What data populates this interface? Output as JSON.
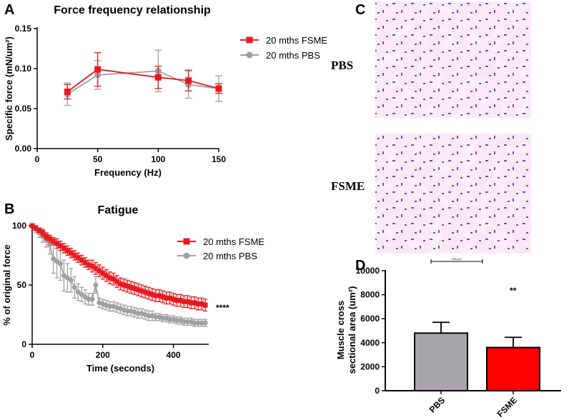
{
  "panels": {
    "A": "A",
    "B": "B",
    "C": "C",
    "D": "D"
  },
  "histology": {
    "pbs_label": "PBS",
    "fsme_label": "FSME",
    "scale_text": "200 μm",
    "colors": {
      "tissue": "#e58fd6",
      "background": "#fbe7f6",
      "nuclei": "#4a3aa3"
    }
  },
  "colors": {
    "fsme": "#e8191f",
    "pbs": "#a0a0a0",
    "pbs_bar": "#a7a5aa",
    "axis": "#000000"
  },
  "chart_data": [
    {
      "id": "A",
      "type": "line",
      "title": "Force frequency relationship",
      "xlabel": "Frequency (Hz)",
      "ylabel": "Specific force (mN/um²)",
      "xlim": [
        0,
        150
      ],
      "ylim": [
        0,
        0.15
      ],
      "xticks": [
        0,
        50,
        100,
        150
      ],
      "yticks": [
        0,
        0.05,
        0.1,
        0.15
      ],
      "ytick_labels": [
        "0.00",
        "0.05",
        "0.10",
        "0.15"
      ],
      "x": [
        25,
        50,
        100,
        125,
        150
      ],
      "legend_position": "top-right",
      "series": [
        {
          "name": "20 mths FSME",
          "color": "#e8191f",
          "marker": "square",
          "values": [
            0.071,
            0.099,
            0.089,
            0.085,
            0.075
          ],
          "errors": [
            0.009,
            0.021,
            0.014,
            0.013,
            0.006
          ]
        },
        {
          "name": "20 mths PBS",
          "color": "#a0a0a0",
          "marker": "circle",
          "values": [
            0.068,
            0.092,
            0.097,
            0.08,
            0.075
          ],
          "errors": [
            0.014,
            0.018,
            0.026,
            0.017,
            0.016
          ]
        }
      ]
    },
    {
      "id": "B",
      "type": "line",
      "title": "Fatigue",
      "xlabel": "Time (seconds)",
      "ylabel": "% of original force",
      "xlim": [
        0,
        500
      ],
      "ylim": [
        0,
        100
      ],
      "xticks": [
        0,
        200,
        400
      ],
      "yticks": [
        0,
        50,
        100
      ],
      "significance": "****",
      "legend_position": "top-right",
      "series": [
        {
          "name": "20 mths FSME",
          "color": "#e8191f",
          "marker": "square",
          "x": [
            0,
            10,
            20,
            30,
            40,
            50,
            60,
            70,
            80,
            90,
            100,
            110,
            120,
            130,
            140,
            150,
            160,
            170,
            180,
            190,
            200,
            210,
            220,
            230,
            240,
            250,
            260,
            270,
            280,
            290,
            300,
            310,
            320,
            330,
            340,
            350,
            360,
            370,
            380,
            390,
            400,
            410,
            420,
            430,
            440,
            450,
            460,
            470,
            480,
            490
          ],
          "values": [
            100,
            98,
            96,
            94,
            91,
            89,
            87,
            85,
            83,
            81,
            79,
            77,
            75,
            73,
            71,
            69,
            67,
            66,
            64,
            62,
            60,
            58,
            56,
            55,
            53,
            51,
            50,
            49,
            48,
            47,
            46,
            45,
            44,
            43,
            42,
            41,
            41,
            40,
            39,
            39,
            38,
            37,
            37,
            36,
            36,
            35,
            35,
            34,
            34,
            33
          ],
          "errors": [
            1,
            2,
            2,
            3,
            3,
            3,
            3,
            4,
            4,
            4,
            4,
            4,
            4,
            4,
            4,
            4,
            4,
            5,
            5,
            5,
            5,
            5,
            5,
            5,
            5,
            5,
            5,
            5,
            5,
            5,
            5,
            5,
            5,
            5,
            5,
            5,
            5,
            5,
            5,
            5,
            5,
            5,
            5,
            5,
            5,
            5,
            5,
            5,
            5,
            5
          ]
        },
        {
          "name": "20 mths PBS",
          "color": "#a0a0a0",
          "marker": "circle",
          "x": [
            0,
            10,
            20,
            30,
            40,
            50,
            60,
            70,
            80,
            90,
            100,
            110,
            120,
            130,
            140,
            150,
            160,
            170,
            180,
            190,
            200,
            210,
            220,
            230,
            240,
            250,
            260,
            270,
            280,
            290,
            300,
            310,
            320,
            330,
            340,
            350,
            360,
            370,
            380,
            390,
            400,
            410,
            420,
            430,
            440,
            450,
            460,
            470,
            480,
            490
          ],
          "values": [
            100,
            97,
            94,
            91,
            88,
            84,
            72,
            70,
            68,
            58,
            56,
            54,
            48,
            44,
            42,
            40,
            38,
            38,
            50,
            35,
            34,
            33,
            32,
            32,
            31,
            30,
            29,
            28,
            28,
            27,
            26,
            26,
            25,
            24,
            24,
            23,
            23,
            22,
            22,
            21,
            21,
            20,
            20,
            19,
            19,
            19,
            18,
            18,
            18,
            18
          ],
          "errors": [
            1,
            3,
            4,
            5,
            6,
            8,
            12,
            14,
            14,
            13,
            12,
            10,
            9,
            7,
            6,
            6,
            5,
            5,
            7,
            4,
            4,
            4,
            4,
            4,
            4,
            4,
            4,
            4,
            4,
            4,
            4,
            4,
            4,
            4,
            4,
            3,
            3,
            3,
            3,
            3,
            3,
            3,
            3,
            3,
            3,
            3,
            3,
            3,
            3,
            3
          ]
        }
      ]
    },
    {
      "id": "D",
      "type": "bar",
      "categories": [
        "PBS",
        "FSME"
      ],
      "values": [
        4800,
        3600
      ],
      "errors": [
        900,
        850
      ],
      "colors": [
        "#a7a5aa",
        "#ff0000"
      ],
      "ylabel_line1": "Muscle cross",
      "ylabel_line2": "sectional area (um²)",
      "ylim": [
        0,
        10000
      ],
      "yticks": [
        0,
        2000,
        4000,
        6000,
        8000,
        10000
      ],
      "significance": "**"
    }
  ]
}
